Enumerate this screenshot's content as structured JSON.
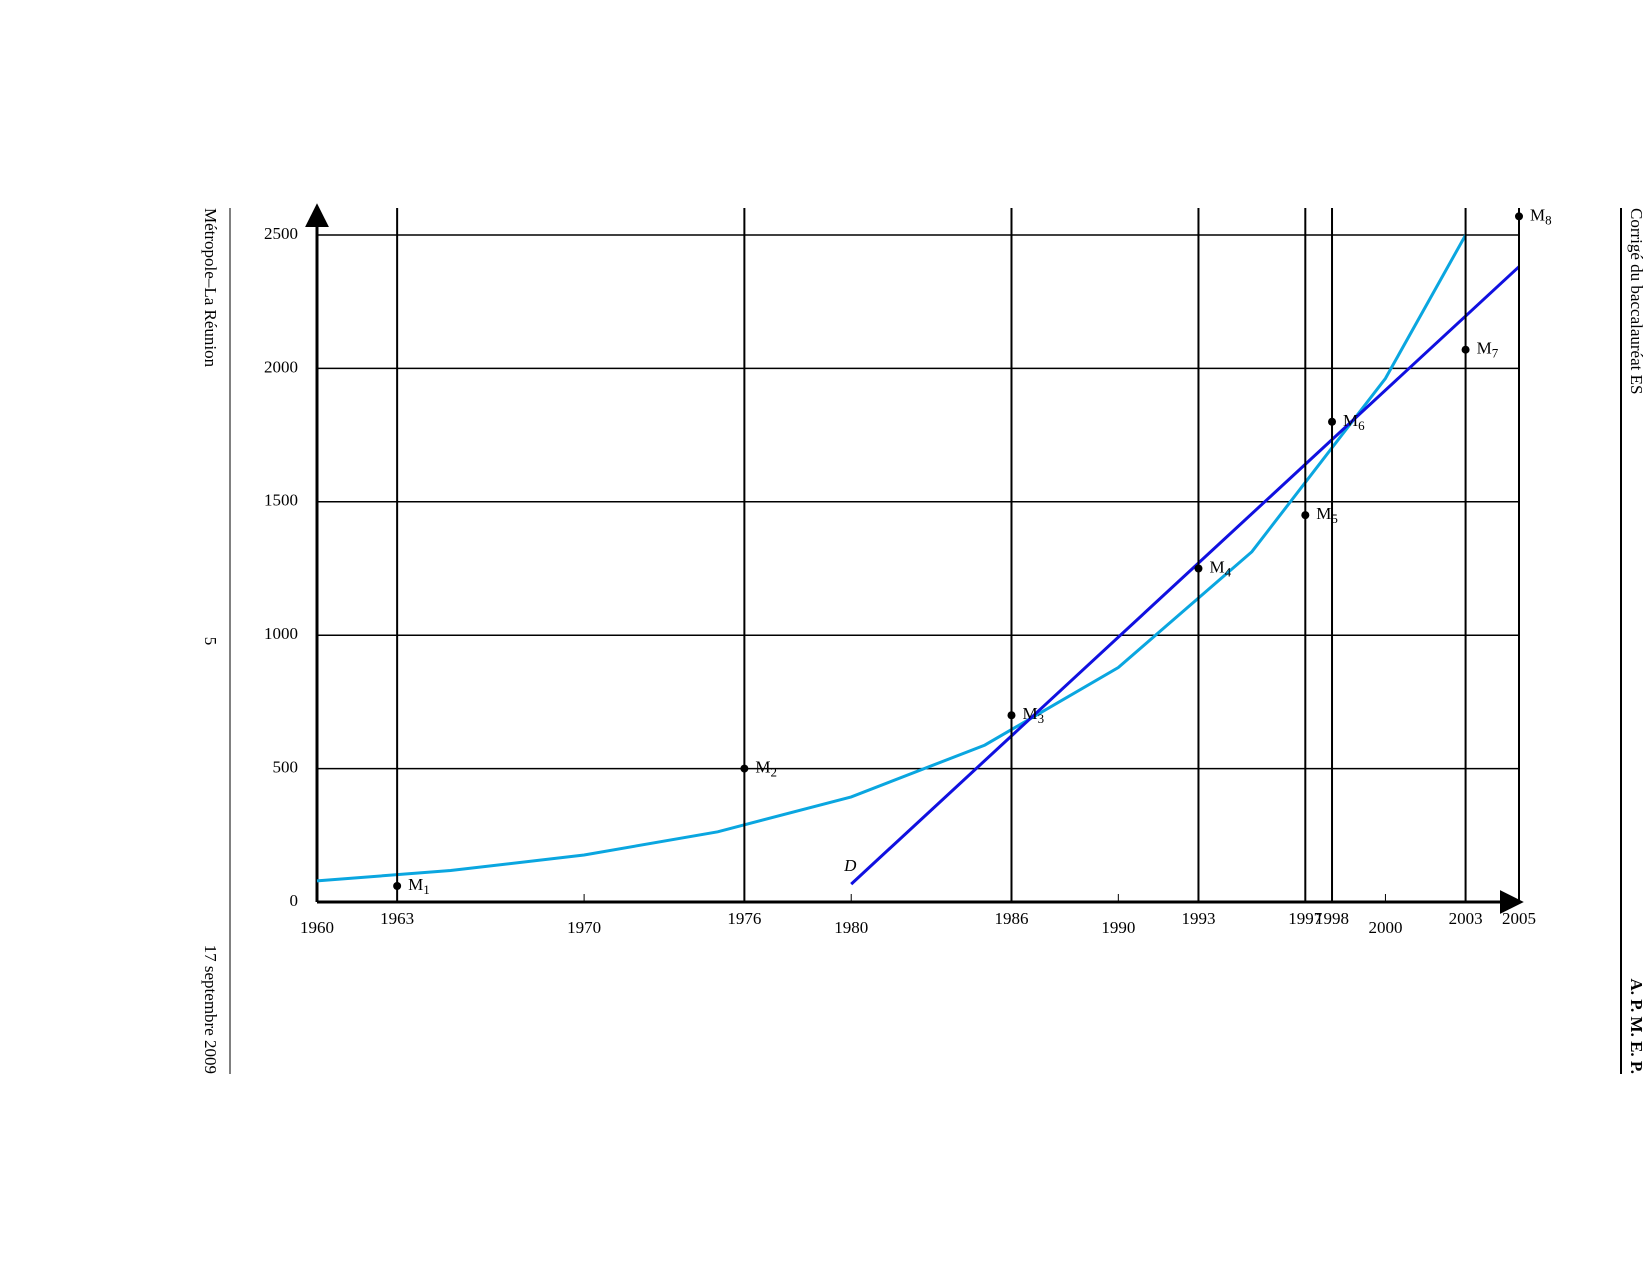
{
  "page": {
    "left_top": "Métropole–La Réunion",
    "left_middle": "5",
    "left_bottom": "17 septembre 2009",
    "right_top": "Corrigé du baccalauréat ES",
    "right_bottom": "A. P. M. E. P."
  },
  "chart_data": {
    "type": "scatter",
    "xlim": [
      1960,
      2005
    ],
    "ylim": [
      0,
      2500
    ],
    "xticks": [
      1960,
      1970,
      1980,
      1990,
      2000
    ],
    "yticks": [
      0,
      500,
      1000,
      1500,
      2000,
      2500
    ],
    "grid": true,
    "points": {
      "x": [
        1963,
        1976,
        1986,
        1993,
        1997,
        1998,
        2003,
        2005
      ],
      "values": [
        60,
        500,
        700,
        1250,
        1450,
        1800,
        2070,
        2570
      ],
      "labels": [
        "M1",
        "M2",
        "M3",
        "M4",
        "M5",
        "M6",
        "M7",
        "M8"
      ],
      "color": "#000000"
    },
    "curve": {
      "color": "#0aa6e0",
      "x": [
        1960,
        1965,
        1970,
        1975,
        1980,
        1985,
        1990,
        1995,
        2000,
        2003
      ],
      "values": [
        79,
        118,
        176,
        263,
        394,
        588,
        879,
        1313,
        1962,
        2500
      ]
    },
    "line": {
      "label": "D",
      "color": "#1010e0",
      "x": [
        1980,
        2005
      ],
      "values": [
        67,
        2381
      ]
    }
  }
}
